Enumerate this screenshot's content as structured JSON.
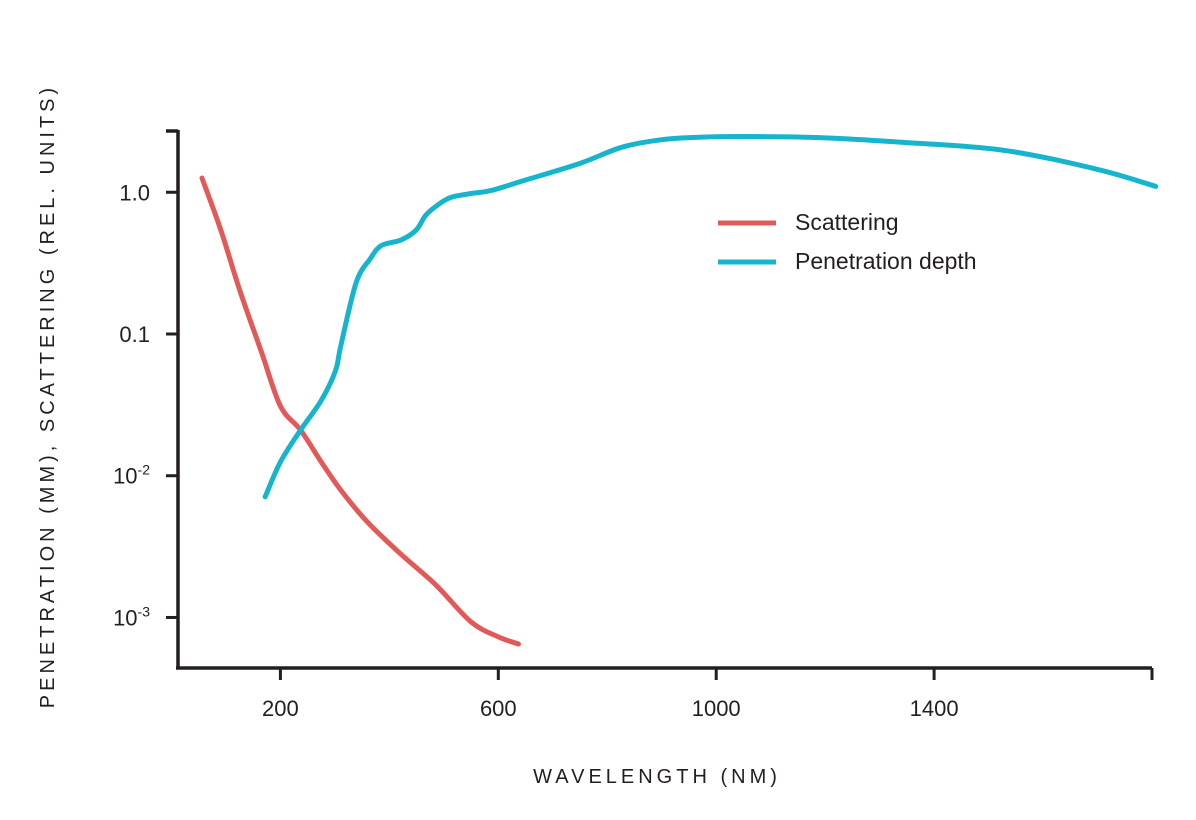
{
  "chart_data": {
    "type": "line",
    "xlabel": "WAVELENGTH (NM)",
    "ylabel": "PENETRATION (MM), SCATTERING (REL. UNITS)",
    "xlim": [
      12,
      1800
    ],
    "ylim": [
      0.00044,
      2.75
    ],
    "yscale": "log",
    "grid": false,
    "legend_position": "top-right",
    "x_ticks": [
      {
        "value": 200,
        "label": "200"
      },
      {
        "value": 600,
        "label": "600"
      },
      {
        "value": 1000,
        "label": "1000"
      },
      {
        "value": 1400,
        "label": "1400"
      },
      {
        "value": 1800,
        "label": ""
      }
    ],
    "y_ticks": [
      {
        "value": 1.0,
        "label": "1.0",
        "base": "",
        "exp": ""
      },
      {
        "value": 0.1,
        "label": "0.1",
        "base": "",
        "exp": ""
      },
      {
        "value": 0.01,
        "label": "",
        "base": "10",
        "exp": "-2"
      },
      {
        "value": 0.001,
        "label": "",
        "base": "10",
        "exp": "-3"
      }
    ],
    "series": [
      {
        "name": "Scattering",
        "color": "#e05a5a",
        "x": [
          56,
          90,
          126,
          165,
          200,
          237,
          275,
          311,
          360,
          421,
          485,
          550,
          600,
          637
        ],
        "y": [
          1.26,
          0.55,
          0.2,
          0.075,
          0.031,
          0.021,
          0.0125,
          0.0079,
          0.0047,
          0.0028,
          0.0017,
          0.00093,
          0.00073,
          0.00065
        ]
      },
      {
        "name": "Penetration depth",
        "color": "#17b4cd",
        "x": [
          172,
          200,
          237,
          275,
          301,
          311,
          339,
          365,
          385,
          421,
          449,
          467,
          490,
          513,
          550,
          587,
          650,
          750,
          827,
          900,
          974,
          1085,
          1200,
          1343,
          1527,
          1700,
          1807
        ],
        "y": [
          0.0071,
          0.0125,
          0.021,
          0.034,
          0.055,
          0.083,
          0.23,
          0.34,
          0.42,
          0.46,
          0.54,
          0.69,
          0.82,
          0.92,
          0.98,
          1.03,
          1.22,
          1.6,
          2.08,
          2.35,
          2.45,
          2.47,
          2.42,
          2.25,
          1.98,
          1.45,
          1.1
        ]
      }
    ]
  }
}
